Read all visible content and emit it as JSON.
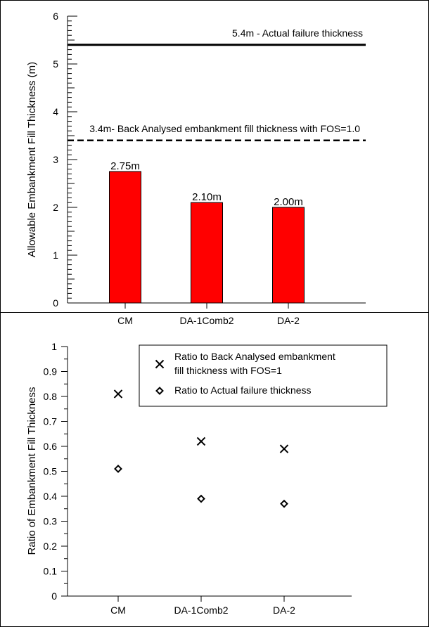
{
  "chart_data": [
    {
      "type": "bar",
      "ylabel": "Allowable Embankment Fill Thickness (m)",
      "xlabel": "",
      "categories": [
        "CM",
        "DA-1Comb2",
        "DA-2"
      ],
      "values": [
        2.75,
        2.1,
        2.0
      ],
      "data_labels": [
        "2.75m",
        "2.10m",
        "2.00m"
      ],
      "ylim": [
        0,
        6
      ],
      "yticks": [
        "0",
        "1",
        "2",
        "3",
        "4",
        "5",
        "6"
      ],
      "grid": false,
      "bar_color": "#ff0000",
      "reference_lines": [
        {
          "value": 5.4,
          "style": "solid",
          "label": "5.4m - Actual failure thickness"
        },
        {
          "value": 3.4,
          "style": "dashed",
          "label": "3.4m- Back Analysed embankment fill thickness with FOS=1.0"
        }
      ]
    },
    {
      "type": "scatter",
      "ylabel": "Ratio of Embankment Fill Thickness",
      "xlabel": "",
      "categories": [
        "CM",
        "DA-1Comb2",
        "DA-2"
      ],
      "ylim": [
        0,
        1
      ],
      "yticks": [
        "0",
        "0.1",
        "0.2",
        "0.3",
        "0.4",
        "0.5",
        "0.6",
        "0.7",
        "0.8",
        "0.9",
        "1"
      ],
      "grid": false,
      "legend_position": "top-right",
      "series": [
        {
          "name": "Ratio to Back Analysed embankment fill thickness with FOS=1",
          "legend_lines": [
            "Ratio to Back Analysed embankment",
            "fill thickness with FOS=1"
          ],
          "marker": "x",
          "values": [
            0.81,
            0.62,
            0.59
          ]
        },
        {
          "name": "Ratio to Actual failure thickness",
          "legend_lines": [
            "Ratio to Actual failure thickness"
          ],
          "marker": "diamond",
          "values": [
            0.51,
            0.39,
            0.37
          ]
        }
      ]
    }
  ]
}
